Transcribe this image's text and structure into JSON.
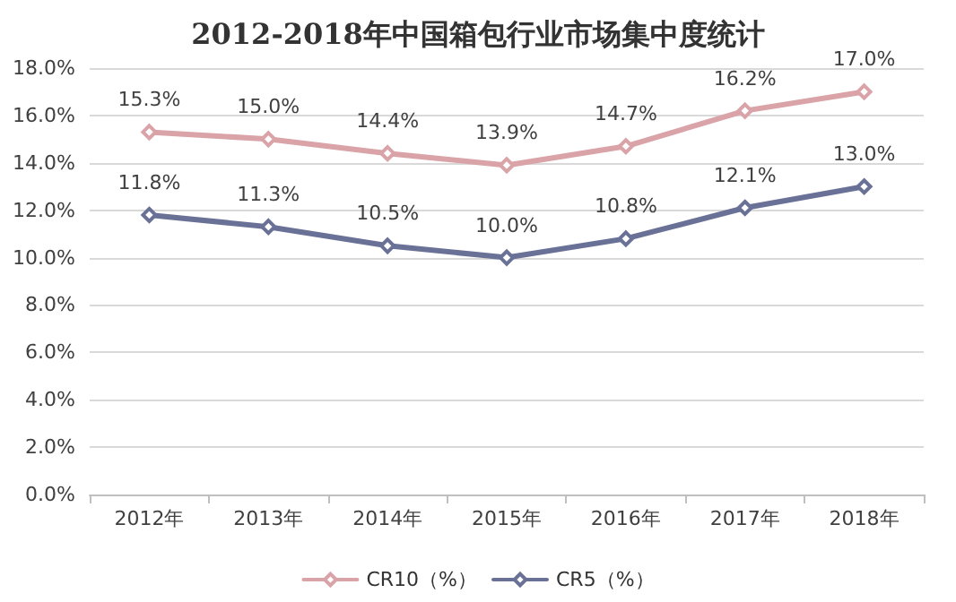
{
  "chart_data": {
    "type": "line",
    "title": "2012-2018年中国箱包行业市场集中度统计",
    "categories": [
      "2012年",
      "2013年",
      "2014年",
      "2015年",
      "2016年",
      "2017年",
      "2018年"
    ],
    "series": [
      {
        "name": "CR10（%）",
        "color": "#d9a3a8",
        "values": [
          15.3,
          15.0,
          14.4,
          13.9,
          14.7,
          16.2,
          17.0
        ],
        "value_labels": [
          "15.3%",
          "15.0%",
          "14.4%",
          "13.9%",
          "14.7%",
          "16.2%",
          "17.0%"
        ]
      },
      {
        "name": "CR5（%）",
        "color": "#6a7197",
        "values": [
          11.8,
          11.3,
          10.5,
          10.0,
          10.8,
          12.1,
          13.0
        ],
        "value_labels": [
          "11.8%",
          "11.3%",
          "10.5%",
          "10.0%",
          "10.8%",
          "12.1%",
          "13.0%"
        ]
      }
    ],
    "ylim": [
      0,
      18
    ],
    "yticks": [
      {
        "value": 0,
        "label": "0.0%"
      },
      {
        "value": 2,
        "label": "2.0%"
      },
      {
        "value": 4,
        "label": "4.0%"
      },
      {
        "value": 6,
        "label": "6.0%"
      },
      {
        "value": 8,
        "label": "8.0%"
      },
      {
        "value": 10,
        "label": "10.0%"
      },
      {
        "value": 12,
        "label": "12.0%"
      },
      {
        "value": 14,
        "label": "14.0%"
      },
      {
        "value": 16,
        "label": "16.0%"
      },
      {
        "value": 18,
        "label": "18.0%"
      }
    ],
    "grid": "y",
    "legend": "bottom",
    "marker": "diamond",
    "line_style": "solid"
  }
}
